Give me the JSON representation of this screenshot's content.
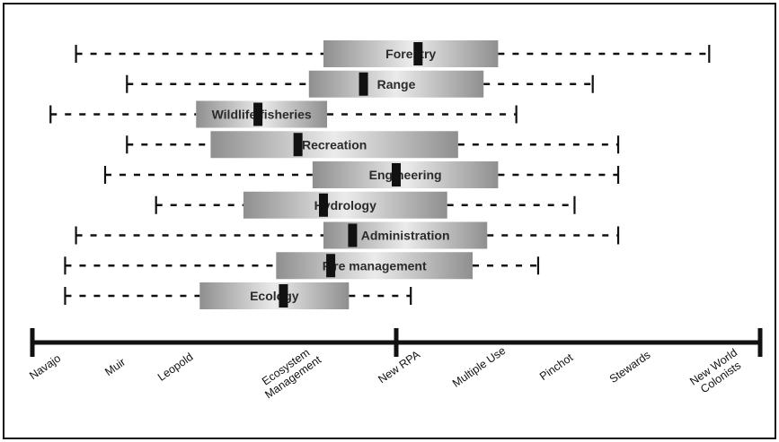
{
  "chart_data": {
    "type": "box",
    "categories": [
      "Forestry",
      "Range",
      "Wildlife/fisheries",
      "Recreation",
      "Engineering",
      "Hydrology",
      "Administration",
      "Fire management",
      "Ecology"
    ],
    "axis": {
      "ticks": [
        "Navajo",
        "Muir",
        "Leopold",
        "Ecosystem Management",
        "New RPA",
        "Multiple Use",
        "Pinchot",
        "Stewards",
        "New World Colonists"
      ],
      "ticks_lines": [
        [
          "Navajo"
        ],
        [
          "Muir"
        ],
        [
          "Leopold"
        ],
        [
          "Ecosystem",
          "Management"
        ],
        [
          "New RPA"
        ],
        [
          "Multiple Use"
        ],
        [
          "Pinchot"
        ],
        [
          "Stewards"
        ],
        [
          "New World",
          "Colonists"
        ]
      ],
      "range": [
        0,
        100
      ],
      "ends": [
        0,
        100
      ]
    },
    "series": [
      {
        "label": "Forestry",
        "low": 6,
        "q1": 40,
        "median": 53,
        "q3": 64,
        "high": 93
      },
      {
        "label": "Range",
        "low": 13,
        "q1": 38,
        "median": 45.5,
        "q3": 62,
        "high": 77
      },
      {
        "label": "Wildlife/fisheries",
        "low": 2.5,
        "q1": 22.5,
        "median": 31,
        "q3": 40.5,
        "high": 66.5
      },
      {
        "label": "Recreation",
        "low": 13,
        "q1": 24.5,
        "median": 36.5,
        "q3": 58.5,
        "high": 80.5
      },
      {
        "label": "Engineering",
        "low": 10,
        "q1": 38.5,
        "median": 50,
        "q3": 64,
        "high": 80.5
      },
      {
        "label": "Hydrology",
        "low": 17,
        "q1": 29,
        "median": 40,
        "q3": 57,
        "high": 74.5
      },
      {
        "label": "Administration",
        "low": 6,
        "q1": 40,
        "median": 44,
        "q3": 62.5,
        "high": 80.5
      },
      {
        "label": "Fire management",
        "low": 4.5,
        "q1": 33.5,
        "median": 41,
        "q3": 60.5,
        "high": 69.5
      },
      {
        "label": "Ecology",
        "low": 4.5,
        "q1": 23,
        "median": 34.5,
        "q3": 43.5,
        "high": 52
      }
    ],
    "grid": false,
    "legend": "none"
  },
  "colors": {
    "box_dark": "#8f8f8f",
    "box_light": "#ebebeb",
    "ink": "#111111",
    "median": "#111111"
  }
}
